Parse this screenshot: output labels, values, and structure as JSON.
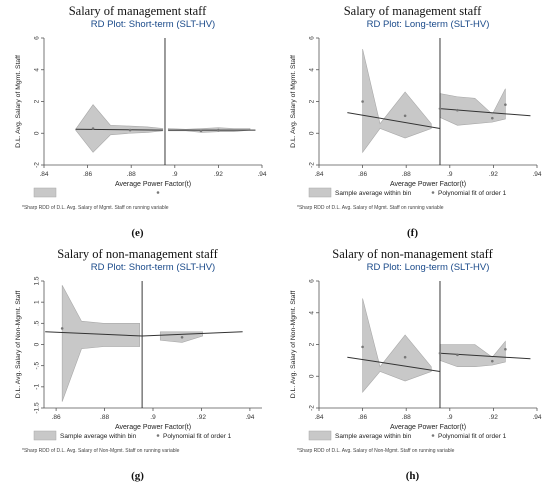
{
  "chart_data": [
    {
      "panel_title": "Salary of management staff",
      "letter": "(e)",
      "type": "area",
      "title": "RD Plot: Short-term (SLT-HV)",
      "ylabel": "D.L. Avg. Salary of Mgmt. Staff",
      "xlabel": "Average Power Factor(t)",
      "ylim": [
        -2,
        6
      ],
      "yticks": [
        -2,
        0,
        2,
        4,
        6
      ],
      "yticklabels": [
        "-2",
        "0",
        "2",
        "4",
        "6"
      ],
      "xlim": [
        0.84,
        0.94
      ],
      "xticks": [
        0.84,
        0.86,
        0.88,
        0.9,
        0.92,
        0.94
      ],
      "xticklabels": [
        ".84",
        ".86",
        ".88",
        ".9",
        ".92",
        ".94"
      ],
      "cutoff": 0.8955,
      "bins_left": [
        {
          "x": 0.8545,
          "lo": 0.2,
          "hi": 0.25
        },
        {
          "x": 0.8625,
          "lo": -1.2,
          "hi": 1.8
        },
        {
          "x": 0.8705,
          "lo": -0.1,
          "hi": 0.5
        },
        {
          "x": 0.8795,
          "lo": 0.0,
          "hi": 0.45
        },
        {
          "x": 0.8875,
          "lo": 0.05,
          "hi": 0.4
        },
        {
          "x": 0.8945,
          "lo": 0.15,
          "hi": 0.3
        }
      ],
      "bins_right": [
        {
          "x": 0.897,
          "lo": 0.15,
          "hi": 0.3
        },
        {
          "x": 0.905,
          "lo": 0.15,
          "hi": 0.25
        },
        {
          "x": 0.9125,
          "lo": 0.05,
          "hi": 0.3
        },
        {
          "x": 0.92,
          "lo": 0.1,
          "hi": 0.35
        },
        {
          "x": 0.927,
          "lo": 0.1,
          "hi": 0.3
        },
        {
          "x": 0.9345,
          "lo": 0.2,
          "hi": 0.3
        }
      ],
      "points": [
        {
          "x": 0.8625,
          "y": 0.3
        },
        {
          "x": 0.8795,
          "y": 0.2
        },
        {
          "x": 0.912,
          "y": 0.15
        },
        {
          "x": 0.92,
          "y": 0.2
        }
      ],
      "fit_left": [
        {
          "x": 0.8545,
          "y": 0.25
        },
        {
          "x": 0.8945,
          "y": 0.2
        }
      ],
      "fit_right": [
        {
          "x": 0.897,
          "y": 0.2
        },
        {
          "x": 0.937,
          "y": 0.2
        }
      ],
      "legend": {
        "area": "",
        "fit": ""
      },
      "footnote": "*Sharp RDD of D.L. Avg. Salary of Mgmt. Staff on running variable"
    },
    {
      "panel_title": "Salary of management staff",
      "letter": "(f)",
      "type": "area",
      "title": "RD Plot: Long-term (SLT-HV)",
      "ylabel": "D.L. Avg. Salary of Mgmt. Staff",
      "xlabel": "Average Power Factor(t)",
      "ylim": [
        -2,
        6
      ],
      "yticks": [
        -2,
        0,
        2,
        4,
        6
      ],
      "yticklabels": [
        "-2",
        "0",
        "2",
        "4",
        "6"
      ],
      "xlim": [
        0.84,
        0.94
      ],
      "xticks": [
        0.84,
        0.86,
        0.88,
        0.9,
        0.92,
        0.94
      ],
      "xticklabels": [
        ".84",
        ".86",
        ".88",
        ".9",
        ".92",
        ".94"
      ],
      "cutoff": 0.8955,
      "bins_left": [
        {
          "x": 0.86,
          "lo": -1.2,
          "hi": 5.3
        },
        {
          "x": 0.868,
          "lo": 0.3,
          "hi": 0.6
        },
        {
          "x": 0.8795,
          "lo": -0.3,
          "hi": 2.6
        },
        {
          "x": 0.8915,
          "lo": 0.3,
          "hi": 0.6
        }
      ],
      "bins_right": [
        {
          "x": 0.8955,
          "lo": 1.0,
          "hi": 2.5
        },
        {
          "x": 0.9035,
          "lo": 0.5,
          "hi": 2.3
        },
        {
          "x": 0.9115,
          "lo": 0.6,
          "hi": 2.2
        },
        {
          "x": 0.9195,
          "lo": 0.7,
          "hi": 1.2
        },
        {
          "x": 0.9255,
          "lo": 0.9,
          "hi": 2.8
        }
      ],
      "points": [
        {
          "x": 0.86,
          "y": 2.0
        },
        {
          "x": 0.8795,
          "y": 1.1
        },
        {
          "x": 0.8955,
          "y": 1.55
        },
        {
          "x": 0.9035,
          "y": 1.45
        },
        {
          "x": 0.9195,
          "y": 0.95
        },
        {
          "x": 0.9255,
          "y": 1.8
        }
      ],
      "fit_left": [
        {
          "x": 0.853,
          "y": 1.3
        },
        {
          "x": 0.8955,
          "y": 0.3
        }
      ],
      "fit_right": [
        {
          "x": 0.8955,
          "y": 1.55
        },
        {
          "x": 0.937,
          "y": 1.1
        }
      ],
      "legend": {
        "area": "Sample average within bin",
        "fit": "Polynomial fit of order 1"
      },
      "footnote": "*Sharp RDD of D.L. Avg. Salary of Mgmt. Staff on running variable"
    },
    {
      "panel_title": "Salary of non-management staff",
      "letter": "(g)",
      "type": "area",
      "title": "RD Plot: Short-term (SLT-HV)",
      "ylabel": "D.L. Avg. Salary of Non-Mgmt. Staff",
      "xlabel": "Average Power Factor(t)",
      "ylim": [
        -1.5,
        1.5
      ],
      "yticks": [
        -1.5,
        -1,
        -0.5,
        0,
        0.5,
        1,
        1.5
      ],
      "yticklabels": [
        "-1.5",
        "-1",
        "-.5",
        "0",
        ".5",
        "1",
        "1.5"
      ],
      "xlim": [
        0.855,
        0.945
      ],
      "xticks": [
        0.86,
        0.88,
        0.9,
        0.92,
        0.94
      ],
      "xticklabels": [
        ".86",
        ".88",
        ".9",
        ".92",
        ".94"
      ],
      "cutoff": 0.8955,
      "bins_left": [
        {
          "x": 0.8625,
          "lo": -1.35,
          "hi": 1.4
        },
        {
          "x": 0.8705,
          "lo": -0.1,
          "hi": 0.55
        },
        {
          "x": 0.8795,
          "lo": -0.05,
          "hi": 0.5
        },
        {
          "x": 0.8945,
          "lo": -0.05,
          "hi": 0.5
        }
      ],
      "bins_right": [
        {
          "x": 0.903,
          "lo": 0.1,
          "hi": 0.3
        },
        {
          "x": 0.912,
          "lo": 0.05,
          "hi": 0.3
        },
        {
          "x": 0.9205,
          "lo": 0.2,
          "hi": 0.3
        }
      ],
      "points": [
        {
          "x": 0.8625,
          "y": 0.38
        },
        {
          "x": 0.912,
          "y": 0.17
        }
      ],
      "fit_left": [
        {
          "x": 0.8555,
          "y": 0.3
        },
        {
          "x": 0.8955,
          "y": 0.2
        }
      ],
      "fit_right": [
        {
          "x": 0.8955,
          "y": 0.2
        },
        {
          "x": 0.937,
          "y": 0.3
        }
      ],
      "legend": {
        "area": "Sample average within bin",
        "fit": "Polynomial fit of order 1"
      },
      "footnote": "*Sharp RDD of D.L. Avg. Salary of Non-Mgmt. Staff on running variable"
    },
    {
      "panel_title": "Salary of non-management staff",
      "letter": "(h)",
      "type": "area",
      "title": "RD Plot: Long-term (SLT-HV)",
      "ylabel": "D.L. Avg. Salary of Non-Mgmt. Staff",
      "xlabel": "Average Power Factor(t)",
      "ylim": [
        -2,
        6
      ],
      "yticks": [
        -2,
        0,
        2,
        4,
        6
      ],
      "yticklabels": [
        "-2",
        "0",
        "2",
        "4",
        "6"
      ],
      "xlim": [
        0.84,
        0.94
      ],
      "xticks": [
        0.84,
        0.86,
        0.88,
        0.9,
        0.92,
        0.94
      ],
      "xticklabels": [
        ".84",
        ".86",
        ".88",
        ".9",
        ".92",
        ".94"
      ],
      "cutoff": 0.8955,
      "bins_left": [
        {
          "x": 0.86,
          "lo": -1.0,
          "hi": 4.9
        },
        {
          "x": 0.868,
          "lo": 0.3,
          "hi": 0.6
        },
        {
          "x": 0.8795,
          "lo": -0.3,
          "hi": 2.6
        },
        {
          "x": 0.8915,
          "lo": 0.3,
          "hi": 0.6
        }
      ],
      "bins_right": [
        {
          "x": 0.8955,
          "lo": 1.0,
          "hi": 2.0
        },
        {
          "x": 0.9035,
          "lo": 0.6,
          "hi": 2.0
        },
        {
          "x": 0.9115,
          "lo": 0.6,
          "hi": 2.0
        },
        {
          "x": 0.9195,
          "lo": 0.7,
          "hi": 1.2
        },
        {
          "x": 0.9255,
          "lo": 0.9,
          "hi": 2.2
        }
      ],
      "points": [
        {
          "x": 0.86,
          "y": 1.85
        },
        {
          "x": 0.8795,
          "y": 1.2
        },
        {
          "x": 0.8955,
          "y": 1.45
        },
        {
          "x": 0.9035,
          "y": 1.35
        },
        {
          "x": 0.9195,
          "y": 0.95
        },
        {
          "x": 0.9255,
          "y": 1.7
        }
      ],
      "fit_left": [
        {
          "x": 0.853,
          "y": 1.2
        },
        {
          "x": 0.8955,
          "y": 0.3
        }
      ],
      "fit_right": [
        {
          "x": 0.8955,
          "y": 1.45
        },
        {
          "x": 0.937,
          "y": 1.1
        }
      ],
      "legend": {
        "area": "Sample average within bin",
        "fit": "Polynomial fit of order 1"
      },
      "footnote": "*Sharp RDD of D.L. Avg. Salary of Non-Mgmt. Staff on running variable"
    }
  ],
  "colors": {
    "band_fill": "#c8c8c8",
    "band_stroke": "#a8a8a8",
    "fit_line": "#333333",
    "title_blue": "#1a4a8a",
    "axis": "#555555",
    "point": "#777777"
  }
}
